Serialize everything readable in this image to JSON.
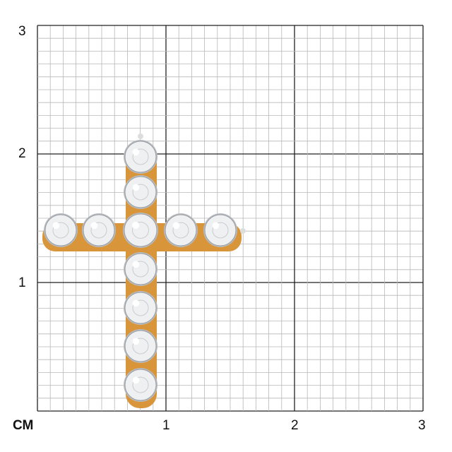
{
  "scale": {
    "unit_label": "СМ",
    "x_labels": [
      "1",
      "2",
      "3"
    ],
    "y_labels": [
      "1",
      "2",
      "3"
    ]
  },
  "product": {
    "type": "cross pendant",
    "metal_color": "#d9953a",
    "stone_color": "#eef0f2",
    "vertical_stones": 7,
    "horizontal_stones": 5
  }
}
